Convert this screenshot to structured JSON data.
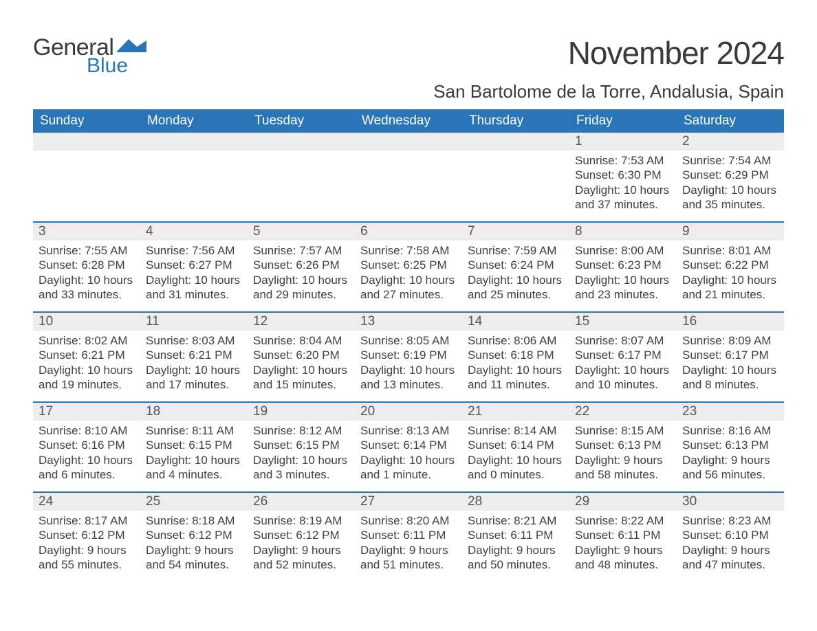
{
  "brand": {
    "general": "General",
    "blue": "Blue"
  },
  "title": "November 2024",
  "location": "San Bartolome de la Torre, Andalusia, Spain",
  "colors": {
    "header_bg": "#2a74b8",
    "header_text": "#ffffff",
    "daynum_bg": "#ededed",
    "text": "#404040",
    "week_border": "#2a74b8",
    "page_bg": "#ffffff"
  },
  "typography": {
    "title_fontsize": 46,
    "location_fontsize": 26,
    "dow_fontsize": 19,
    "daynum_fontsize": 19,
    "body_fontsize": 17
  },
  "layout": {
    "columns": 7,
    "rows": 5,
    "blank_leading_cells": 5
  },
  "days_of_week": [
    "Sunday",
    "Monday",
    "Tuesday",
    "Wednesday",
    "Thursday",
    "Friday",
    "Saturday"
  ],
  "days": [
    {
      "n": 1,
      "sunrise": "7:53 AM",
      "sunset": "6:30 PM",
      "daylight": "10 hours and 37 minutes."
    },
    {
      "n": 2,
      "sunrise": "7:54 AM",
      "sunset": "6:29 PM",
      "daylight": "10 hours and 35 minutes."
    },
    {
      "n": 3,
      "sunrise": "7:55 AM",
      "sunset": "6:28 PM",
      "daylight": "10 hours and 33 minutes."
    },
    {
      "n": 4,
      "sunrise": "7:56 AM",
      "sunset": "6:27 PM",
      "daylight": "10 hours and 31 minutes."
    },
    {
      "n": 5,
      "sunrise": "7:57 AM",
      "sunset": "6:26 PM",
      "daylight": "10 hours and 29 minutes."
    },
    {
      "n": 6,
      "sunrise": "7:58 AM",
      "sunset": "6:25 PM",
      "daylight": "10 hours and 27 minutes."
    },
    {
      "n": 7,
      "sunrise": "7:59 AM",
      "sunset": "6:24 PM",
      "daylight": "10 hours and 25 minutes."
    },
    {
      "n": 8,
      "sunrise": "8:00 AM",
      "sunset": "6:23 PM",
      "daylight": "10 hours and 23 minutes."
    },
    {
      "n": 9,
      "sunrise": "8:01 AM",
      "sunset": "6:22 PM",
      "daylight": "10 hours and 21 minutes."
    },
    {
      "n": 10,
      "sunrise": "8:02 AM",
      "sunset": "6:21 PM",
      "daylight": "10 hours and 19 minutes."
    },
    {
      "n": 11,
      "sunrise": "8:03 AM",
      "sunset": "6:21 PM",
      "daylight": "10 hours and 17 minutes."
    },
    {
      "n": 12,
      "sunrise": "8:04 AM",
      "sunset": "6:20 PM",
      "daylight": "10 hours and 15 minutes."
    },
    {
      "n": 13,
      "sunrise": "8:05 AM",
      "sunset": "6:19 PM",
      "daylight": "10 hours and 13 minutes."
    },
    {
      "n": 14,
      "sunrise": "8:06 AM",
      "sunset": "6:18 PM",
      "daylight": "10 hours and 11 minutes."
    },
    {
      "n": 15,
      "sunrise": "8:07 AM",
      "sunset": "6:17 PM",
      "daylight": "10 hours and 10 minutes."
    },
    {
      "n": 16,
      "sunrise": "8:09 AM",
      "sunset": "6:17 PM",
      "daylight": "10 hours and 8 minutes."
    },
    {
      "n": 17,
      "sunrise": "8:10 AM",
      "sunset": "6:16 PM",
      "daylight": "10 hours and 6 minutes."
    },
    {
      "n": 18,
      "sunrise": "8:11 AM",
      "sunset": "6:15 PM",
      "daylight": "10 hours and 4 minutes."
    },
    {
      "n": 19,
      "sunrise": "8:12 AM",
      "sunset": "6:15 PM",
      "daylight": "10 hours and 3 minutes."
    },
    {
      "n": 20,
      "sunrise": "8:13 AM",
      "sunset": "6:14 PM",
      "daylight": "10 hours and 1 minute."
    },
    {
      "n": 21,
      "sunrise": "8:14 AM",
      "sunset": "6:14 PM",
      "daylight": "10 hours and 0 minutes."
    },
    {
      "n": 22,
      "sunrise": "8:15 AM",
      "sunset": "6:13 PM",
      "daylight": "9 hours and 58 minutes."
    },
    {
      "n": 23,
      "sunrise": "8:16 AM",
      "sunset": "6:13 PM",
      "daylight": "9 hours and 56 minutes."
    },
    {
      "n": 24,
      "sunrise": "8:17 AM",
      "sunset": "6:12 PM",
      "daylight": "9 hours and 55 minutes."
    },
    {
      "n": 25,
      "sunrise": "8:18 AM",
      "sunset": "6:12 PM",
      "daylight": "9 hours and 54 minutes."
    },
    {
      "n": 26,
      "sunrise": "8:19 AM",
      "sunset": "6:12 PM",
      "daylight": "9 hours and 52 minutes."
    },
    {
      "n": 27,
      "sunrise": "8:20 AM",
      "sunset": "6:11 PM",
      "daylight": "9 hours and 51 minutes."
    },
    {
      "n": 28,
      "sunrise": "8:21 AM",
      "sunset": "6:11 PM",
      "daylight": "9 hours and 50 minutes."
    },
    {
      "n": 29,
      "sunrise": "8:22 AM",
      "sunset": "6:11 PM",
      "daylight": "9 hours and 48 minutes."
    },
    {
      "n": 30,
      "sunrise": "8:23 AM",
      "sunset": "6:10 PM",
      "daylight": "9 hours and 47 minutes."
    }
  ],
  "labels": {
    "sunrise_prefix": "Sunrise: ",
    "sunset_prefix": "Sunset: ",
    "daylight_prefix": "Daylight: "
  }
}
